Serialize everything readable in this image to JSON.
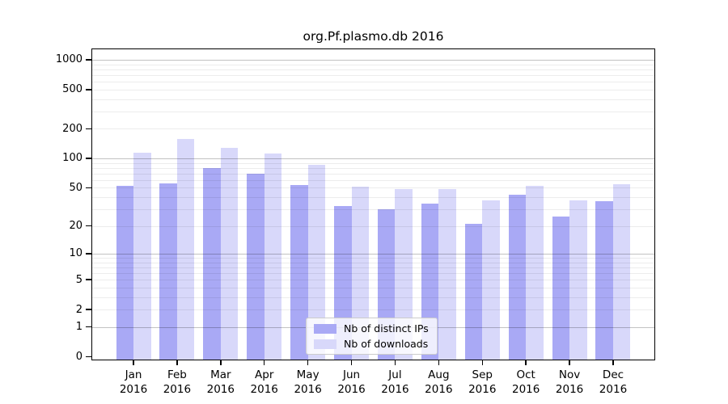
{
  "chart_data": {
    "type": "bar",
    "title": "org.Pf.plasmo.db 2016",
    "categories": [
      "Jan 2016",
      "Feb 2016",
      "Mar 2016",
      "Apr 2016",
      "May 2016",
      "Jun 2016",
      "Jul 2016",
      "Aug 2016",
      "Sep 2016",
      "Oct 2016",
      "Nov 2016",
      "Dec 2016"
    ],
    "series": [
      {
        "name": "Nb of distinct IPs",
        "color": "#a9a9f5",
        "values": [
          52,
          55,
          79,
          70,
          53,
          32,
          30,
          34,
          21,
          42,
          25,
          36
        ]
      },
      {
        "name": "Nb of downloads",
        "color": "#d8d8fa",
        "values": [
          115,
          157,
          127,
          113,
          86,
          51,
          48,
          48,
          37,
          52,
          37,
          54
        ]
      }
    ],
    "xlabel": "",
    "ylabel": "",
    "y_scale": "log1p",
    "y_ticks": [
      1000,
      500,
      200,
      100,
      50,
      20,
      10,
      5,
      2,
      1,
      0
    ],
    "ylim": [
      0,
      1300
    ],
    "grid": true,
    "legend_position": "lower center",
    "colors": {
      "major_grid": "#c7c7c7",
      "minor_grid": "#ededed",
      "axis": "#000000",
      "background": "#ffffff"
    }
  }
}
